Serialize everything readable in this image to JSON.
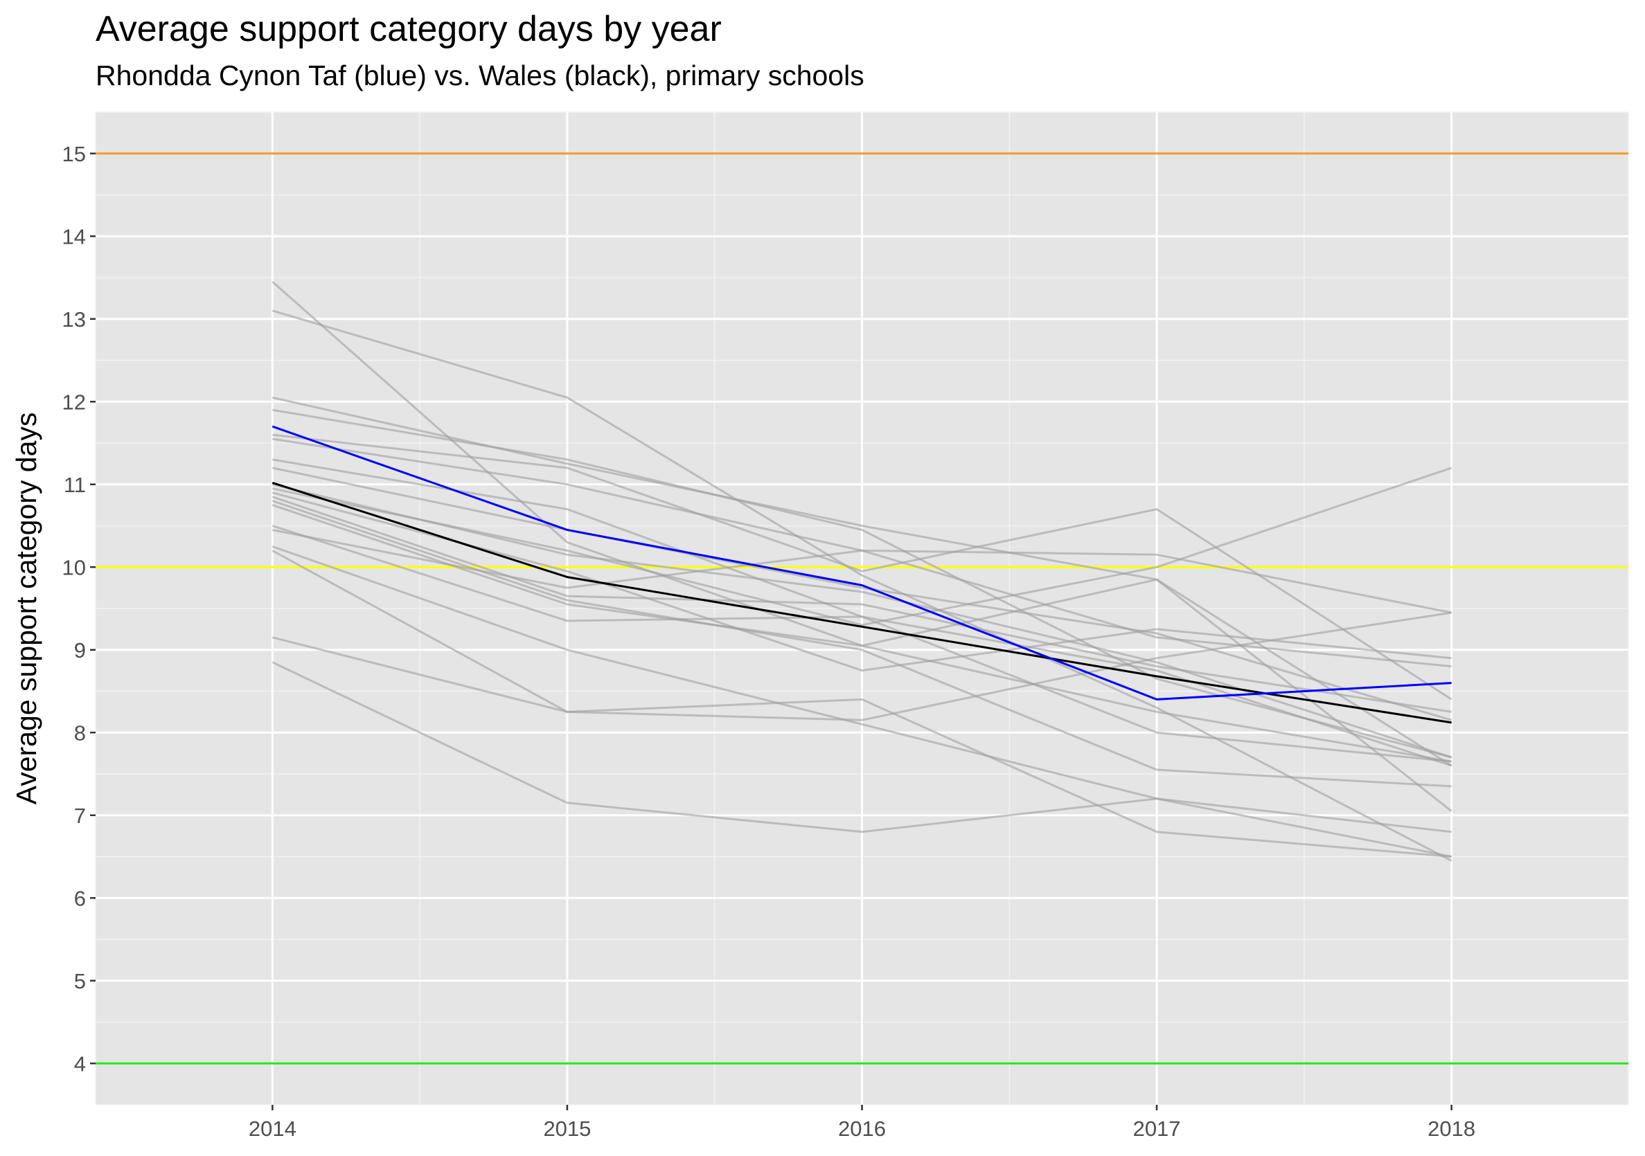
{
  "chart_data": {
    "type": "line",
    "title": "Average support category days by year",
    "subtitle": "Rhondda Cynon Taf (blue) vs. Wales (black), primary schools",
    "xlabel": "",
    "ylabel": "Average support category days",
    "x": [
      2014,
      2015,
      2016,
      2017,
      2018
    ],
    "x_tick_labels": [
      "2014",
      "2015",
      "2016",
      "2017",
      "2018"
    ],
    "y_ticks": [
      4,
      5,
      6,
      7,
      8,
      9,
      10,
      11,
      12,
      13,
      14,
      15
    ],
    "y_tick_labels": [
      "4",
      "5",
      "6",
      "7",
      "8",
      "9",
      "10",
      "11",
      "12",
      "13",
      "14",
      "15"
    ],
    "xlim": [
      2013.4,
      2018.6
    ],
    "ylim": [
      3.5,
      15.5
    ],
    "grid": true,
    "panel_background": "#e5e5e5",
    "reference_lines": [
      {
        "y": 15,
        "color": "#f59a23"
      },
      {
        "y": 10,
        "color": "#ffff00"
      },
      {
        "y": 4,
        "color": "#22e81a"
      }
    ],
    "background_series_color": "#9e9e9e",
    "background_series": [
      {
        "values": [
          13.45,
          10.3,
          9.05,
          8.25,
          7.65
        ]
      },
      {
        "values": [
          13.1,
          12.05,
          9.9,
          8.3,
          6.45
        ]
      },
      {
        "values": [
          12.05,
          11.25,
          10.5,
          9.85,
          7.6
        ]
      },
      {
        "values": [
          11.9,
          11.3,
          10.45,
          8.65,
          7.7
        ]
      },
      {
        "values": [
          11.6,
          11.2,
          9.95,
          10.7,
          8.4
        ]
      },
      {
        "values": [
          11.55,
          11.0,
          10.2,
          10.15,
          9.45
        ]
      },
      {
        "values": [
          11.3,
          10.7,
          9.4,
          8.0,
          7.65
        ]
      },
      {
        "values": [
          11.2,
          10.45,
          9.75,
          9.2,
          8.15
        ]
      },
      {
        "values": [
          10.9,
          9.95,
          8.75,
          9.25,
          8.9
        ]
      },
      {
        "values": [
          10.85,
          9.65,
          9.55,
          8.8,
          8.25
        ]
      },
      {
        "values": [
          10.8,
          9.6,
          9.0,
          7.55,
          7.35
        ]
      },
      {
        "values": [
          10.75,
          9.55,
          9.05,
          9.85,
          7.05
        ]
      },
      {
        "values": [
          10.5,
          9.35,
          9.4,
          8.75,
          7.6
        ]
      },
      {
        "values": [
          10.45,
          9.75,
          10.2,
          9.15,
          8.8
        ]
      },
      {
        "values": [
          10.25,
          9.0,
          8.1,
          7.2,
          6.8
        ]
      },
      {
        "values": [
          10.2,
          8.25,
          8.4,
          6.8,
          6.5
        ]
      },
      {
        "values": [
          9.15,
          8.25,
          8.15,
          8.9,
          9.45
        ]
      },
      {
        "values": [
          8.85,
          7.15,
          6.8,
          7.2,
          6.5
        ]
      },
      {
        "values": [
          10.95,
          10.2,
          9.3,
          10.0,
          11.2
        ]
      },
      {
        "values": [
          11.0,
          10.15,
          9.7,
          8.85,
          7.7
        ]
      }
    ],
    "series": [
      {
        "values": [
          11.02,
          9.88,
          9.28,
          8.68,
          8.12
        ],
        "color": "#000000"
      },
      {
        "values": [
          11.7,
          10.45,
          9.78,
          8.4,
          8.6
        ],
        "color": "#0000ff"
      }
    ]
  }
}
